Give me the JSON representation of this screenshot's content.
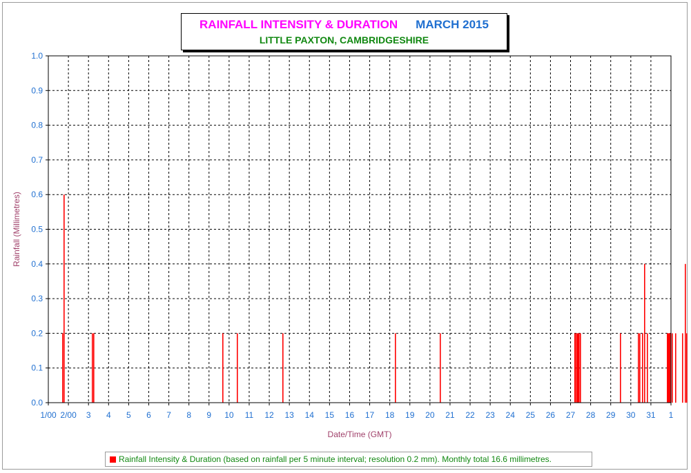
{
  "title": {
    "main": "RAINFALL INTENSITY & DURATION",
    "period": "MARCH 2015",
    "location": "LITTLE PAXTON, CAMBRIDGESHIRE"
  },
  "legend_text": "Rainfall Intensity & Duration (based on rainfall per 5 minute interval; resolution 0.2 mm). Monthly total 16.6 millimetres.",
  "colors": {
    "bar": "#ff0000",
    "tick": "#1f6fd0",
    "axis_label": "#a0406a",
    "title_main": "#ff00ff",
    "title_period": "#1f6fd0",
    "title_location": "#118811"
  },
  "chart_data": {
    "type": "bar",
    "xlabel": "Date/Time (GMT)",
    "ylabel": "Rainfall (Millimetres)",
    "ylim": [
      0,
      1.0
    ],
    "xlim_days": [
      1,
      31
    ],
    "y_ticks": [
      "0.0",
      "0.1",
      "0.2",
      "0.3",
      "0.4",
      "0.5",
      "0.6",
      "0.7",
      "0.8",
      "0.9",
      "1.0"
    ],
    "x_ticks": [
      "1/00",
      "2/00",
      "3",
      "4",
      "5",
      "6",
      "7",
      "8",
      "9",
      "10",
      "11",
      "12",
      "13",
      "14",
      "15",
      "16",
      "17",
      "18",
      "19",
      "20",
      "21",
      "22",
      "23",
      "24",
      "25",
      "26",
      "27",
      "28",
      "29",
      "30",
      "31",
      "1"
    ],
    "grid": true,
    "legend_position": "bottom",
    "series": [
      {
        "name": "Rainfall Intensity & Duration",
        "points": [
          {
            "day": 1.7,
            "mm": 0.2
          },
          {
            "day": 1.75,
            "mm": 0.6
          },
          {
            "day": 3.15,
            "mm": 0.2
          },
          {
            "day": 3.25,
            "mm": 0.2
          },
          {
            "day": 9.65,
            "mm": 0.2
          },
          {
            "day": 10.38,
            "mm": 0.2
          },
          {
            "day": 12.65,
            "mm": 0.2
          },
          {
            "day": 18.25,
            "mm": 0.2
          },
          {
            "day": 20.5,
            "mm": 0.2
          },
          {
            "day": 27.2,
            "mm": 0.2
          },
          {
            "day": 27.24,
            "mm": 0.2
          },
          {
            "day": 27.28,
            "mm": 0.2
          },
          {
            "day": 27.32,
            "mm": 0.2
          },
          {
            "day": 27.36,
            "mm": 0.2
          },
          {
            "day": 27.4,
            "mm": 0.2
          },
          {
            "day": 27.45,
            "mm": 0.2
          },
          {
            "day": 29.45,
            "mm": 0.2
          },
          {
            "day": 30.35,
            "mm": 0.2
          },
          {
            "day": 30.42,
            "mm": 0.2
          },
          {
            "day": 30.55,
            "mm": 0.2
          },
          {
            "day": 30.65,
            "mm": 0.4
          },
          {
            "day": 30.78,
            "mm": 0.2
          },
          {
            "day": 31.78,
            "mm": 0.2
          },
          {
            "day": 31.82,
            "mm": 0.2
          },
          {
            "day": 31.86,
            "mm": 0.2
          },
          {
            "day": 31.9,
            "mm": 0.2
          },
          {
            "day": 31.94,
            "mm": 0.2
          },
          {
            "day": 32.05,
            "mm": 0.2
          },
          {
            "day": 32.2,
            "mm": 0.2
          },
          {
            "day": 32.55,
            "mm": 0.2
          },
          {
            "day": 32.7,
            "mm": 0.4
          },
          {
            "day": 32.75,
            "mm": 0.2
          }
        ]
      }
    ]
  }
}
